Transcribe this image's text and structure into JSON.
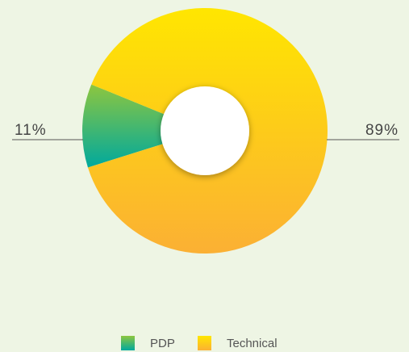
{
  "chart_data": {
    "type": "pie",
    "categories": [
      "PDP",
      "Technical"
    ],
    "values": [
      11,
      89
    ],
    "value_labels": [
      "11%",
      "89%"
    ],
    "colors": [
      "#8dc63f",
      "#ffe600"
    ],
    "gradient_end_colors": [
      "#00a99d",
      "#fbb034"
    ],
    "donut": true,
    "legend": "bottom"
  }
}
